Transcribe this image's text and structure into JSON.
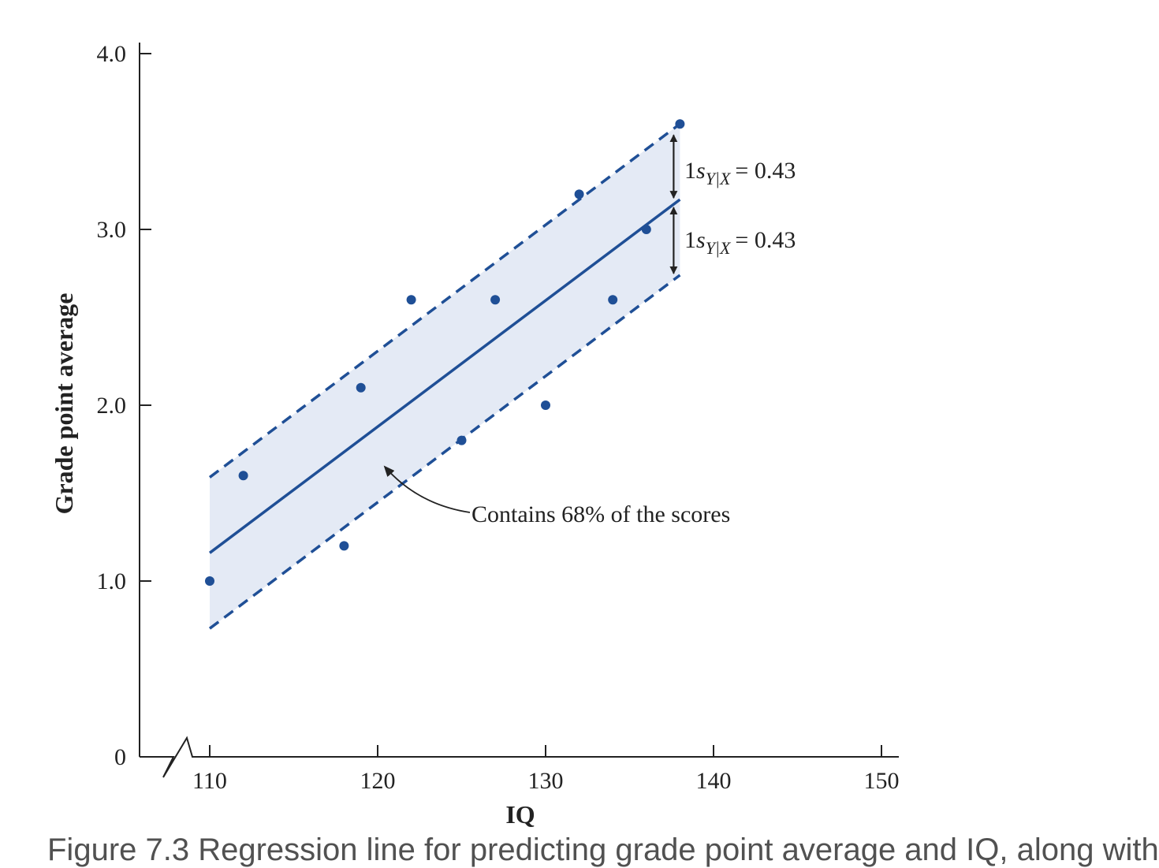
{
  "chart_data": {
    "type": "scatter",
    "title": "",
    "xlabel": "IQ",
    "ylabel": "Grade point average",
    "x_ticks": [
      "110",
      "120",
      "130",
      "140",
      "150"
    ],
    "y_ticks": [
      "0",
      "1.0",
      "2.0",
      "3.0",
      "4.0"
    ],
    "xlim": [
      110,
      150
    ],
    "ylim": [
      0,
      4
    ],
    "axis_break": "x",
    "points": [
      {
        "x": 110,
        "y": 1.0
      },
      {
        "x": 112,
        "y": 1.6
      },
      {
        "x": 118,
        "y": 1.2
      },
      {
        "x": 119,
        "y": 2.1
      },
      {
        "x": 122,
        "y": 2.6
      },
      {
        "x": 125,
        "y": 1.8
      },
      {
        "x": 127,
        "y": 2.6
      },
      {
        "x": 130,
        "y": 2.0
      },
      {
        "x": 132,
        "y": 3.2
      },
      {
        "x": 134,
        "y": 2.6
      },
      {
        "x": 136,
        "y": 3.0
      },
      {
        "x": 138,
        "y": 3.6
      }
    ],
    "regression_line": {
      "x": [
        110,
        138
      ],
      "y": [
        1.16,
        3.17
      ]
    },
    "band_offset": 0.43,
    "annotations": {
      "band_label": "Contains 68% of the scores",
      "upper_offset": {
        "prefix": "1",
        "symbol": "s",
        "subscript": "Y|X",
        "value": "= 0.43"
      },
      "lower_offset": {
        "prefix": "1",
        "symbol": "s",
        "subscript": "Y|X",
        "value": "= 0.43"
      }
    },
    "colors": {
      "points": "#1f4f96",
      "line": "#1f4f96",
      "band": "#e4eaf5",
      "axis": "#222222"
    },
    "grid": false,
    "legend": "none"
  },
  "caption_fragment": "Figure 7.3   Regression line for predicting grade point average and IQ, along with"
}
